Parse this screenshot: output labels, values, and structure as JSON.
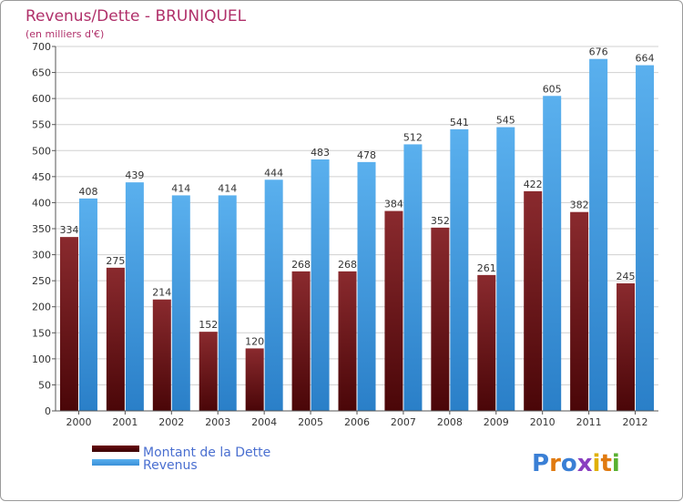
{
  "chart_data": {
    "type": "bar",
    "title": "Revenus/Dette - BRUNIQUEL",
    "subtitle": "(en milliers d'€)",
    "categories": [
      "2000",
      "2001",
      "2002",
      "2003",
      "2004",
      "2005",
      "2006",
      "2007",
      "2008",
      "2009",
      "2010",
      "2011",
      "2012"
    ],
    "series": [
      {
        "name": "Montant de la Dette",
        "color": "#7a1a1e",
        "values": [
          334,
          275,
          214,
          152,
          120,
          268,
          268,
          384,
          352,
          261,
          422,
          382,
          245
        ]
      },
      {
        "name": "Revenus",
        "color": "#3f9be3",
        "values": [
          408,
          439,
          414,
          414,
          444,
          483,
          478,
          512,
          541,
          545,
          605,
          676,
          664
        ]
      }
    ],
    "ylim": [
      0,
      700
    ],
    "yticks": [
      0,
      50,
      100,
      150,
      200,
      250,
      300,
      350,
      400,
      450,
      500,
      550,
      600,
      650,
      700
    ],
    "grid": true,
    "legend": "bottom-left"
  },
  "logo": {
    "letters": [
      "P",
      "r",
      "o",
      "x",
      "i",
      "t",
      "i"
    ],
    "colors": [
      "#3a7fd5",
      "#e07a10",
      "#3a7fd5",
      "#8a3fc0",
      "#e0b000",
      "#e07a10",
      "#58b030"
    ]
  }
}
